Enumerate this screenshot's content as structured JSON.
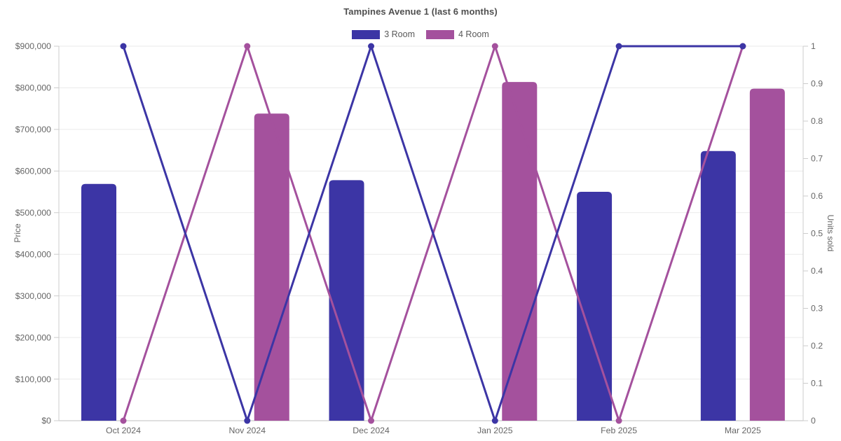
{
  "chart_data": {
    "type": "combo-bar-line",
    "title": "Tampines Avenue 1 (last 6 months)",
    "categories": [
      "Oct 2024",
      "Nov 2024",
      "Dec 2024",
      "Jan 2025",
      "Feb 2025",
      "Mar 2025"
    ],
    "series": [
      {
        "name": "3 Room",
        "color": "#3c35a5",
        "bar_axis": "left",
        "bar_values": [
          569000,
          null,
          578000,
          null,
          550000,
          648000
        ],
        "line_axis": "right",
        "line_values": [
          1,
          0,
          1,
          0,
          1,
          1
        ]
      },
      {
        "name": "4 Room",
        "color": "#a4519d",
        "bar_axis": "left",
        "bar_values": [
          null,
          738000,
          null,
          814000,
          null,
          798000
        ],
        "line_axis": "right",
        "line_values": [
          0,
          1,
          0,
          1,
          0,
          1
        ]
      }
    ],
    "left_axis": {
      "title": "Price",
      "min": 0,
      "max": 900000,
      "tick_values": [
        0,
        100000,
        200000,
        300000,
        400000,
        500000,
        600000,
        700000,
        800000,
        900000
      ],
      "tick_labels": [
        "$0",
        "$100,000",
        "$200,000",
        "$300,000",
        "$400,000",
        "$500,000",
        "$600,000",
        "$700,000",
        "$800,000",
        "$900,000"
      ]
    },
    "right_axis": {
      "title": "Units sold",
      "min": 0,
      "max": 1,
      "tick_values": [
        0,
        0.1,
        0.2,
        0.3,
        0.4,
        0.5,
        0.6,
        0.7,
        0.8,
        0.9,
        1
      ],
      "tick_labels": [
        "0",
        "0.1",
        "0.2",
        "0.3",
        "0.4",
        "0.5",
        "0.6",
        "0.7",
        "0.8",
        "0.9",
        "1"
      ]
    },
    "grid": true,
    "legend_position": "top",
    "style": {
      "background": "#ffffff",
      "grid_color": "#eaeaea",
      "axis_line_color": "#cccccc",
      "tick_text_color": "#666666",
      "title_color": "#4f4f4f",
      "legend_text_color": "#595959"
    }
  }
}
